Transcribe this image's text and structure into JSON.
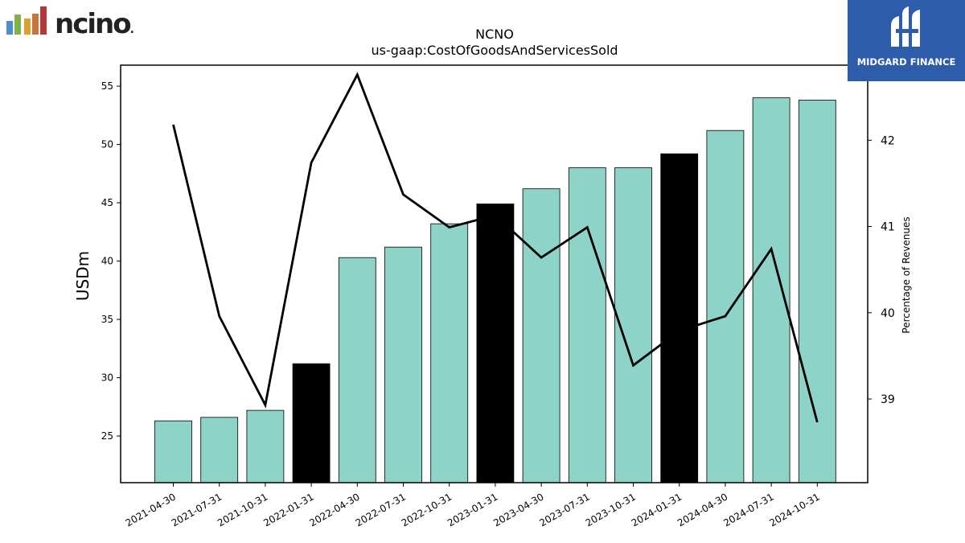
{
  "branding": {
    "left_logo_text": "ncino",
    "left_logo_suffix": ".",
    "right_logo_text": "MIDGARD FINANCE"
  },
  "colors": {
    "bar_default": "#8dd3c7",
    "bar_highlight": "#000000",
    "line": "#000000",
    "right_logo_bg": "#2d5cab",
    "left_logo_bars": [
      "#4a90c4",
      "#7fb34a",
      "#e0a030",
      "#c8743a",
      "#b03a3a"
    ]
  },
  "chart_data": {
    "type": "bar",
    "title": "NCNO",
    "subtitle": "us-gaap:CostOfGoodsAndServicesSold",
    "ylabel": "USDm",
    "y2label": "Percentage of Revenues",
    "ylim": [
      21,
      56.8
    ],
    "y2lim": [
      38.03,
      42.87
    ],
    "yticks": [
      25,
      30,
      35,
      40,
      45,
      50,
      55
    ],
    "y2ticks": [
      39,
      40,
      41,
      42
    ],
    "categories": [
      "2021-04-30",
      "2021-07-31",
      "2021-10-31",
      "2022-01-31",
      "2022-04-30",
      "2022-07-31",
      "2022-10-31",
      "2023-01-31",
      "2023-04-30",
      "2023-07-31",
      "2023-10-31",
      "2024-01-31",
      "2024-04-30",
      "2024-07-31",
      "2024-10-31"
    ],
    "series": [
      {
        "type": "bar",
        "axis": "left",
        "values": [
          26.3,
          26.6,
          27.2,
          31.2,
          40.3,
          41.2,
          43.2,
          44.9,
          46.2,
          48.0,
          48.0,
          49.2,
          51.2,
          54.0,
          53.8
        ],
        "highlight": [
          false,
          false,
          false,
          true,
          false,
          false,
          false,
          true,
          false,
          false,
          false,
          true,
          false,
          false,
          false
        ]
      },
      {
        "type": "line",
        "axis": "right",
        "values": [
          42.18,
          39.96,
          38.93,
          41.74,
          42.76,
          41.37,
          40.99,
          41.13,
          40.64,
          40.99,
          39.39,
          39.79,
          39.96,
          40.74,
          38.73
        ]
      }
    ]
  }
}
